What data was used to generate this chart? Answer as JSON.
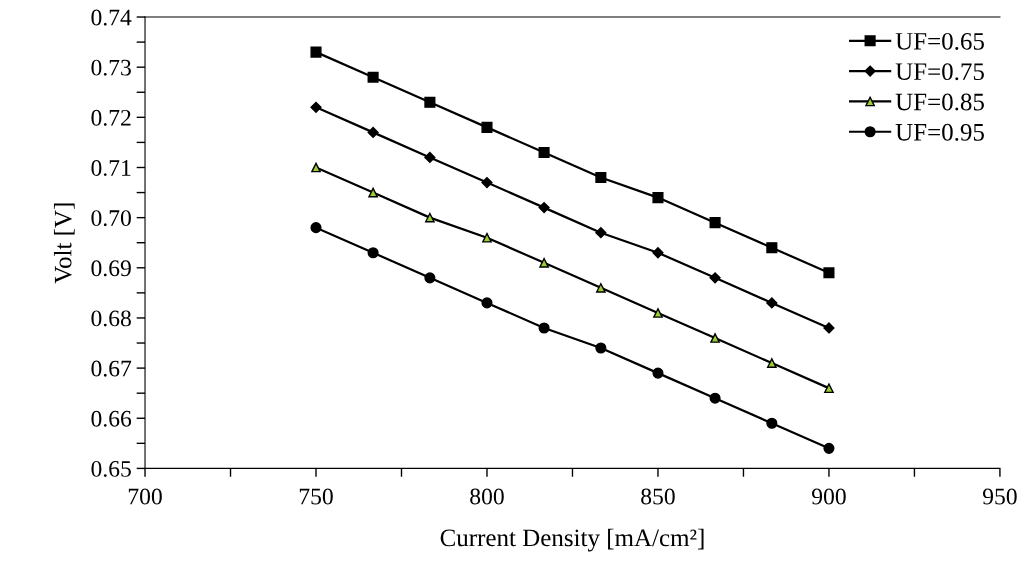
{
  "chart_data": {
    "type": "line",
    "xlabel": "Current Density [mA/cm²]",
    "ylabel": "Volt [V]",
    "x": [
      750,
      766.7,
      783.3,
      800,
      816.7,
      833.3,
      850,
      866.7,
      883.3,
      900
    ],
    "series": [
      {
        "name": "UF=0.65",
        "color": "#000000",
        "marker": "square",
        "values": [
          0.733,
          0.728,
          0.723,
          0.718,
          0.713,
          0.708,
          0.704,
          0.699,
          0.694,
          0.689
        ]
      },
      {
        "name": "UF=0.75",
        "color": "#000000",
        "marker": "diamond",
        "values": [
          0.722,
          0.717,
          0.712,
          0.707,
          0.702,
          0.697,
          0.693,
          0.688,
          0.683,
          0.678
        ]
      },
      {
        "name": "UF=0.85",
        "color": "#000000",
        "marker": "triangle",
        "values": [
          0.71,
          0.705,
          0.7,
          0.696,
          0.691,
          0.686,
          0.681,
          0.676,
          0.671,
          0.666
        ]
      },
      {
        "name": "UF=0.95",
        "color": "#000000",
        "marker": "circle",
        "values": [
          0.698,
          0.693,
          0.688,
          0.683,
          0.678,
          0.674,
          0.669,
          0.664,
          0.659,
          0.654
        ]
      }
    ],
    "xlim": [
      700,
      950
    ],
    "xticks": [
      700,
      {
        "value": 725,
        "label": null
      },
      750,
      {
        "value": 775,
        "label": null
      },
      800,
      {
        "value": 825,
        "label": null
      },
      850,
      {
        "value": 875,
        "label": null
      },
      900,
      {
        "value": 925,
        "label": null
      },
      950
    ],
    "ylim": [
      0.65,
      0.74
    ],
    "yticks": [
      0.65,
      {
        "value": 0.655,
        "label": null
      },
      0.66,
      {
        "value": 0.665,
        "label": null
      },
      0.67,
      {
        "value": 0.675,
        "label": null
      },
      0.68,
      {
        "value": 0.685,
        "label": null
      },
      0.69,
      {
        "value": 0.695,
        "label": null
      },
      {
        "value": 0.7,
        "label": "0.70"
      },
      {
        "value": 0.705,
        "label": null
      },
      0.71,
      {
        "value": 0.715,
        "label": null
      },
      0.72,
      {
        "value": 0.725,
        "label": null
      },
      0.73,
      {
        "value": 0.735,
        "label": null
      },
      0.74
    ],
    "grid": false,
    "legend": "top right",
    "line_style": "solid"
  }
}
